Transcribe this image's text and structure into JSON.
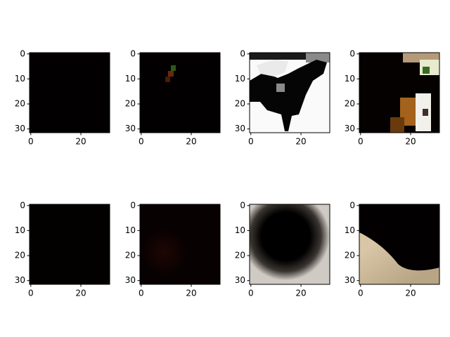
{
  "chart_data": [
    {
      "type": "image",
      "xlim": [
        -0.5,
        31.5
      ],
      "ylim": [
        31.5,
        -0.5
      ],
      "xticks": [
        0,
        20
      ],
      "yticks": [
        0,
        10,
        20,
        30
      ]
    },
    {
      "type": "image",
      "xlim": [
        -0.5,
        31.5
      ],
      "ylim": [
        31.5,
        -0.5
      ],
      "xticks": [
        0,
        20
      ],
      "yticks": [
        0,
        10,
        20,
        30
      ]
    },
    {
      "type": "image",
      "xlim": [
        -0.5,
        31.5
      ],
      "ylim": [
        31.5,
        -0.5
      ],
      "xticks": [
        0,
        20
      ],
      "yticks": [
        0,
        10,
        20,
        30
      ]
    },
    {
      "type": "image",
      "xlim": [
        -0.5,
        31.5
      ],
      "ylim": [
        31.5,
        -0.5
      ],
      "xticks": [
        0,
        20
      ],
      "yticks": [
        0,
        10,
        20,
        30
      ]
    },
    {
      "type": "image",
      "xlim": [
        -0.5,
        31.5
      ],
      "ylim": [
        31.5,
        -0.5
      ],
      "xticks": [
        0,
        20
      ],
      "yticks": [
        0,
        10,
        20,
        30
      ]
    },
    {
      "type": "image",
      "xlim": [
        -0.5,
        31.5
      ],
      "ylim": [
        31.5,
        -0.5
      ],
      "xticks": [
        0,
        20
      ],
      "yticks": [
        0,
        10,
        20,
        30
      ]
    },
    {
      "type": "image",
      "xlim": [
        -0.5,
        31.5
      ],
      "ylim": [
        31.5,
        -0.5
      ],
      "xticks": [
        0,
        20
      ],
      "yticks": [
        0,
        10,
        20,
        30
      ]
    },
    {
      "type": "image",
      "xlim": [
        -0.5,
        31.5
      ],
      "ylim": [
        31.5,
        -0.5
      ],
      "xticks": [
        0,
        20
      ],
      "yticks": [
        0,
        10,
        20,
        30
      ]
    }
  ]
}
